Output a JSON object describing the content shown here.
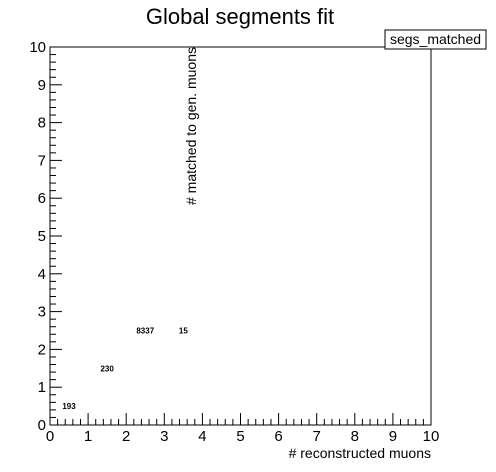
{
  "chart_data": {
    "type": "table",
    "title": "Global segments fit",
    "xlabel": "# reconstructed muons",
    "ylabel": "# matched to gen. muons",
    "xlim": [
      0,
      10
    ],
    "ylim": [
      0,
      10
    ],
    "xticks": [
      0,
      1,
      2,
      3,
      4,
      5,
      6,
      7,
      8,
      9,
      10
    ],
    "yticks": [
      0,
      1,
      2,
      3,
      4,
      5,
      6,
      7,
      8,
      9,
      10
    ],
    "legend": {
      "label": "segs_matched",
      "placement": "top-right"
    },
    "grid": false,
    "cells": [
      {
        "x": 0.5,
        "y": 0.5,
        "value": 193
      },
      {
        "x": 1.5,
        "y": 1.5,
        "value": 230
      },
      {
        "x": 2.5,
        "y": 2.5,
        "value": 8337
      },
      {
        "x": 3.5,
        "y": 2.5,
        "value": 15
      }
    ]
  }
}
